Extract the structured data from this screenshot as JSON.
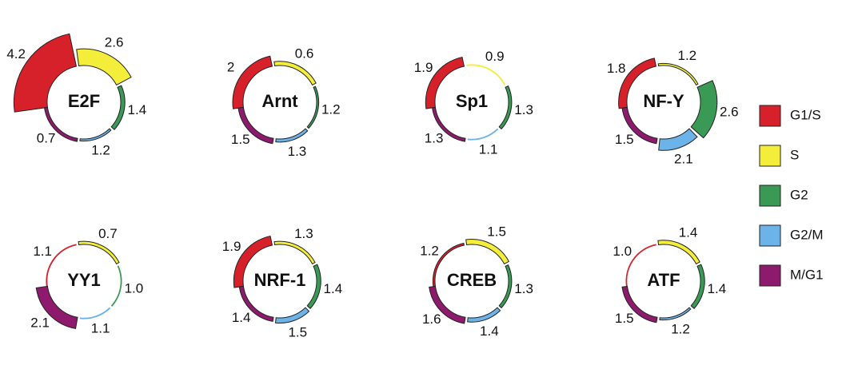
{
  "legend": [
    {
      "name": "G1/S",
      "color": "#d6202a"
    },
    {
      "name": "S",
      "color": "#f4ee3a"
    },
    {
      "name": "G2",
      "color": "#3a9a55"
    },
    {
      "name": "G2/M",
      "color": "#6cb3ea"
    },
    {
      "name": "M/G1",
      "color": "#8e1a6e"
    }
  ],
  "chart_data": [
    {
      "type": "radial-bar",
      "title": "E2F",
      "values": [
        4.2,
        2.6,
        1.4,
        1.2,
        0.7
      ]
    },
    {
      "type": "radial-bar",
      "title": "Arnt",
      "values": [
        2,
        0.6,
        1.2,
        1.3,
        1.5
      ]
    },
    {
      "type": "radial-bar",
      "title": "Sp1",
      "values": [
        1.9,
        0.9,
        1.3,
        1.1,
        1.3
      ]
    },
    {
      "type": "radial-bar",
      "title": "NF-Y",
      "values": [
        1.8,
        1.2,
        2.6,
        2.1,
        1.5
      ]
    },
    {
      "type": "radial-bar",
      "title": "YY1",
      "values": [
        1.1,
        0.7,
        1.0,
        1.1,
        2.1
      ],
      "value_labels": [
        "1.1",
        "0.7",
        "1.0",
        "1.1",
        "2.1"
      ]
    },
    {
      "type": "radial-bar",
      "title": "NRF-1",
      "values": [
        1.9,
        1.3,
        1.4,
        1.5,
        1.4
      ]
    },
    {
      "type": "radial-bar",
      "title": "CREB",
      "values": [
        1.2,
        1.5,
        1.3,
        1.4,
        1.6
      ]
    },
    {
      "type": "radial-bar",
      "title": "ATF",
      "values": [
        1.0,
        1.4,
        1.4,
        1.2,
        1.5
      ],
      "value_labels": [
        "1.0",
        "1.4",
        "1.4",
        "1.2",
        "1.5"
      ]
    }
  ]
}
